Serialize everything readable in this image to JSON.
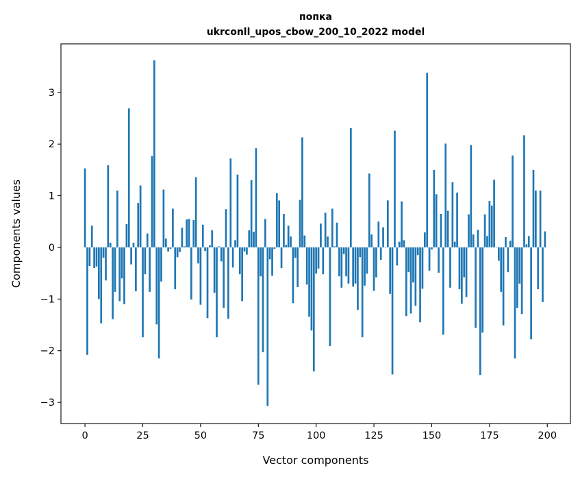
{
  "chart_data": {
    "type": "bar",
    "title_line1": "попка",
    "title_line2": "ukrconll_upos_cbow_200_10_2022 model",
    "xlabel": "Vector components",
    "ylabel": "Components values",
    "xlim": [
      -10.4,
      210
    ],
    "ylim": [
      -3.41,
      3.94
    ],
    "xticks": [
      0,
      25,
      50,
      75,
      100,
      125,
      150,
      175,
      200
    ],
    "xtick_labels": [
      "0",
      "25",
      "50",
      "75",
      "100",
      "125",
      "150",
      "175",
      "200"
    ],
    "yticks": [
      -3,
      -2,
      -1,
      0,
      1,
      2,
      3
    ],
    "ytick_labels": [
      "−3",
      "−2",
      "−1",
      "0",
      "1",
      "2",
      "3"
    ],
    "grid": false,
    "bar_color": "#1f77b4",
    "values": [
      1.53,
      -2.08,
      -0.36,
      0.42,
      -0.4,
      -0.37,
      -1.0,
      -1.47,
      -0.2,
      -0.64,
      1.59,
      0.09,
      -1.39,
      -0.86,
      1.1,
      -1.04,
      -0.6,
      -1.1,
      0.45,
      2.69,
      -0.33,
      0.09,
      -0.85,
      0.86,
      1.2,
      -1.74,
      -0.52,
      0.27,
      -0.86,
      1.77,
      3.62,
      -1.49,
      -2.15,
      -0.66,
      1.12,
      0.17,
      -0.08,
      -0.03,
      0.75,
      -0.81,
      -0.19,
      -0.09,
      0.38,
      0.02,
      0.54,
      0.55,
      -1.01,
      0.53,
      1.36,
      -0.31,
      -1.11,
      0.44,
      -0.07,
      -1.37,
      0.04,
      0.33,
      -0.88,
      -1.74,
      0.02,
      -0.27,
      -1.17,
      0.74,
      -1.38,
      1.72,
      -0.39,
      0.14,
      1.41,
      -0.52,
      -1.04,
      -0.08,
      -0.14,
      0.33,
      1.3,
      0.3,
      1.92,
      -2.66,
      -0.56,
      -2.03,
      0.55,
      -3.07,
      -0.23,
      -0.55,
      -0.03,
      1.05,
      0.91,
      -0.4,
      0.65,
      0.05,
      0.42,
      0.21,
      -1.08,
      -0.2,
      -0.77,
      0.92,
      2.13,
      0.23,
      -0.72,
      -1.34,
      -1.61,
      -2.4,
      -0.51,
      -0.41,
      0.46,
      -0.52,
      0.67,
      0.21,
      -1.91,
      0.75,
      0.02,
      0.48,
      -0.56,
      -0.78,
      -0.13,
      -0.56,
      -0.7,
      2.31,
      -0.76,
      -0.7,
      -1.21,
      -0.19,
      -1.74,
      -0.74,
      -0.51,
      1.43,
      0.25,
      -0.84,
      -0.58,
      0.5,
      -0.24,
      0.39,
      0.01,
      0.91,
      -0.9,
      -2.46,
      2.26,
      -0.35,
      0.11,
      0.89,
      0.14,
      -1.33,
      -0.48,
      -1.28,
      -0.68,
      -1.13,
      -0.15,
      -1.45,
      -0.8,
      0.29,
      3.38,
      -0.45,
      -0.04,
      1.5,
      1.03,
      -0.49,
      0.65,
      -1.69,
      2.01,
      0.71,
      -0.78,
      1.26,
      0.11,
      1.06,
      -0.81,
      -1.09,
      -0.58,
      -0.96,
      0.64,
      1.98,
      0.25,
      -1.56,
      0.34,
      -2.47,
      -1.65,
      0.64,
      0.22,
      0.9,
      0.81,
      1.31,
      0.01,
      -0.26,
      -0.86,
      -1.51,
      0.2,
      -0.48,
      0.13,
      1.78,
      -2.15,
      -1.17,
      -0.7,
      -1.29,
      2.17,
      0.06,
      0.22,
      -1.78,
      1.5,
      1.1,
      -0.81,
      1.1,
      -1.06,
      0.31
    ]
  }
}
